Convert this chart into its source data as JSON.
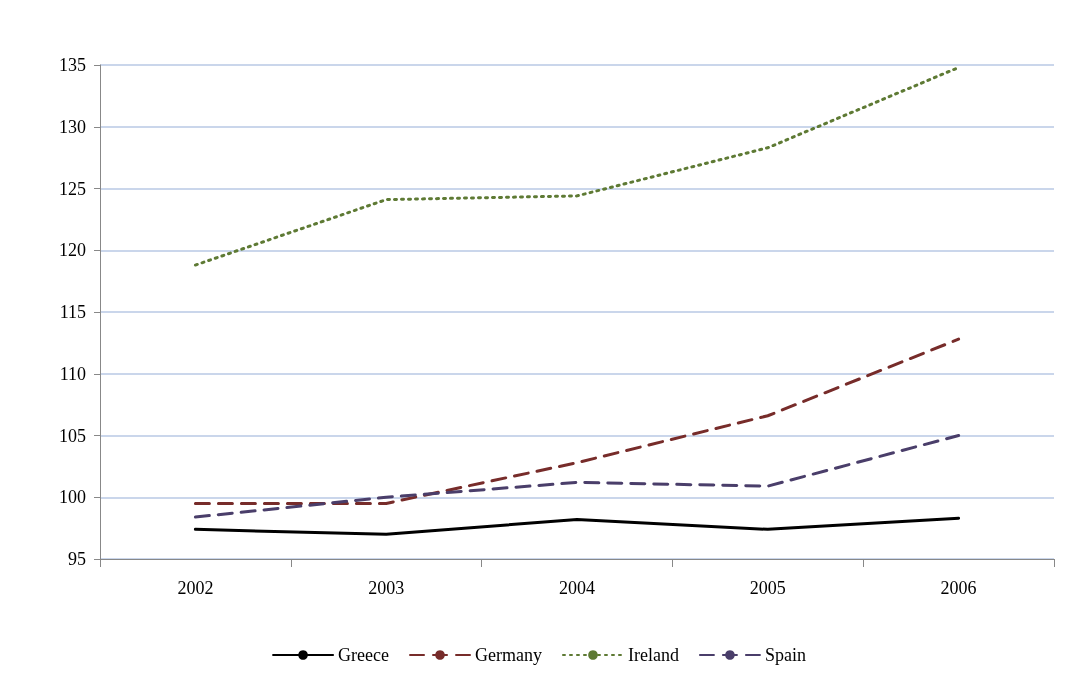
{
  "chart_data": {
    "type": "line",
    "categories": [
      "2002",
      "2003",
      "2004",
      "2005",
      "2006"
    ],
    "series": [
      {
        "name": "Greece",
        "color": "#000000",
        "line_style": "solid",
        "values": [
          97.4,
          97.0,
          98.2,
          97.4,
          98.3
        ]
      },
      {
        "name": "Germany",
        "color": "#772c2a",
        "line_style": "dashed",
        "values": [
          99.5,
          99.5,
          102.8,
          106.6,
          112.8
        ]
      },
      {
        "name": "Ireland",
        "color": "#5e7a34",
        "line_style": "dotted",
        "values": [
          118.8,
          124.1,
          124.4,
          128.3,
          134.8
        ]
      },
      {
        "name": "Spain",
        "color": "#4a3e6a",
        "line_style": "dashed",
        "values": [
          98.4,
          100.0,
          101.2,
          100.9,
          105.0
        ]
      }
    ],
    "ylim": [
      95,
      135
    ],
    "yticks": [
      95,
      100,
      105,
      110,
      115,
      120,
      125,
      130,
      135
    ],
    "grid": "y",
    "legend": "bottom",
    "marker": "none"
  }
}
